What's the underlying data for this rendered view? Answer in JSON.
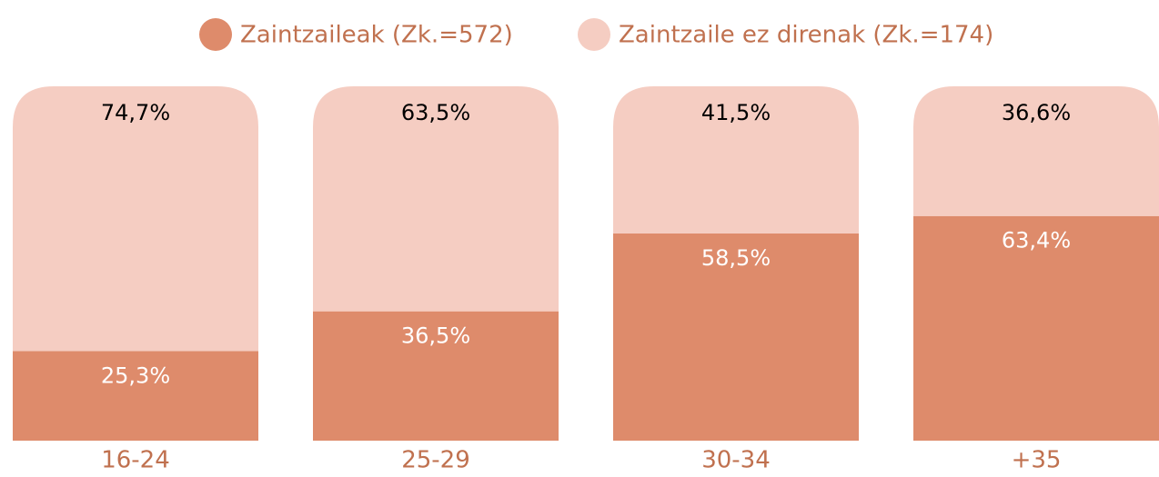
{
  "chart_data": {
    "type": "stacked_bar",
    "categories": [
      "16-24",
      "25-29",
      "30-34",
      "+35"
    ],
    "series": [
      {
        "name": "Zaintzaileak (Zk.=572)",
        "color": "#de8b6b",
        "values": [
          25.3,
          36.5,
          58.5,
          63.4
        ],
        "value_labels": [
          "25,3%",
          "36,5%",
          "58,5%",
          "63,4%"
        ]
      },
      {
        "name": "Zaintzaile ez direnak (Zk.=174)",
        "color": "#f5cdc2",
        "values": [
          74.7,
          63.5,
          41.5,
          36.6
        ],
        "value_labels": [
          "74,7%",
          "63,5%",
          "41,5%",
          "36,6%"
        ]
      }
    ]
  }
}
